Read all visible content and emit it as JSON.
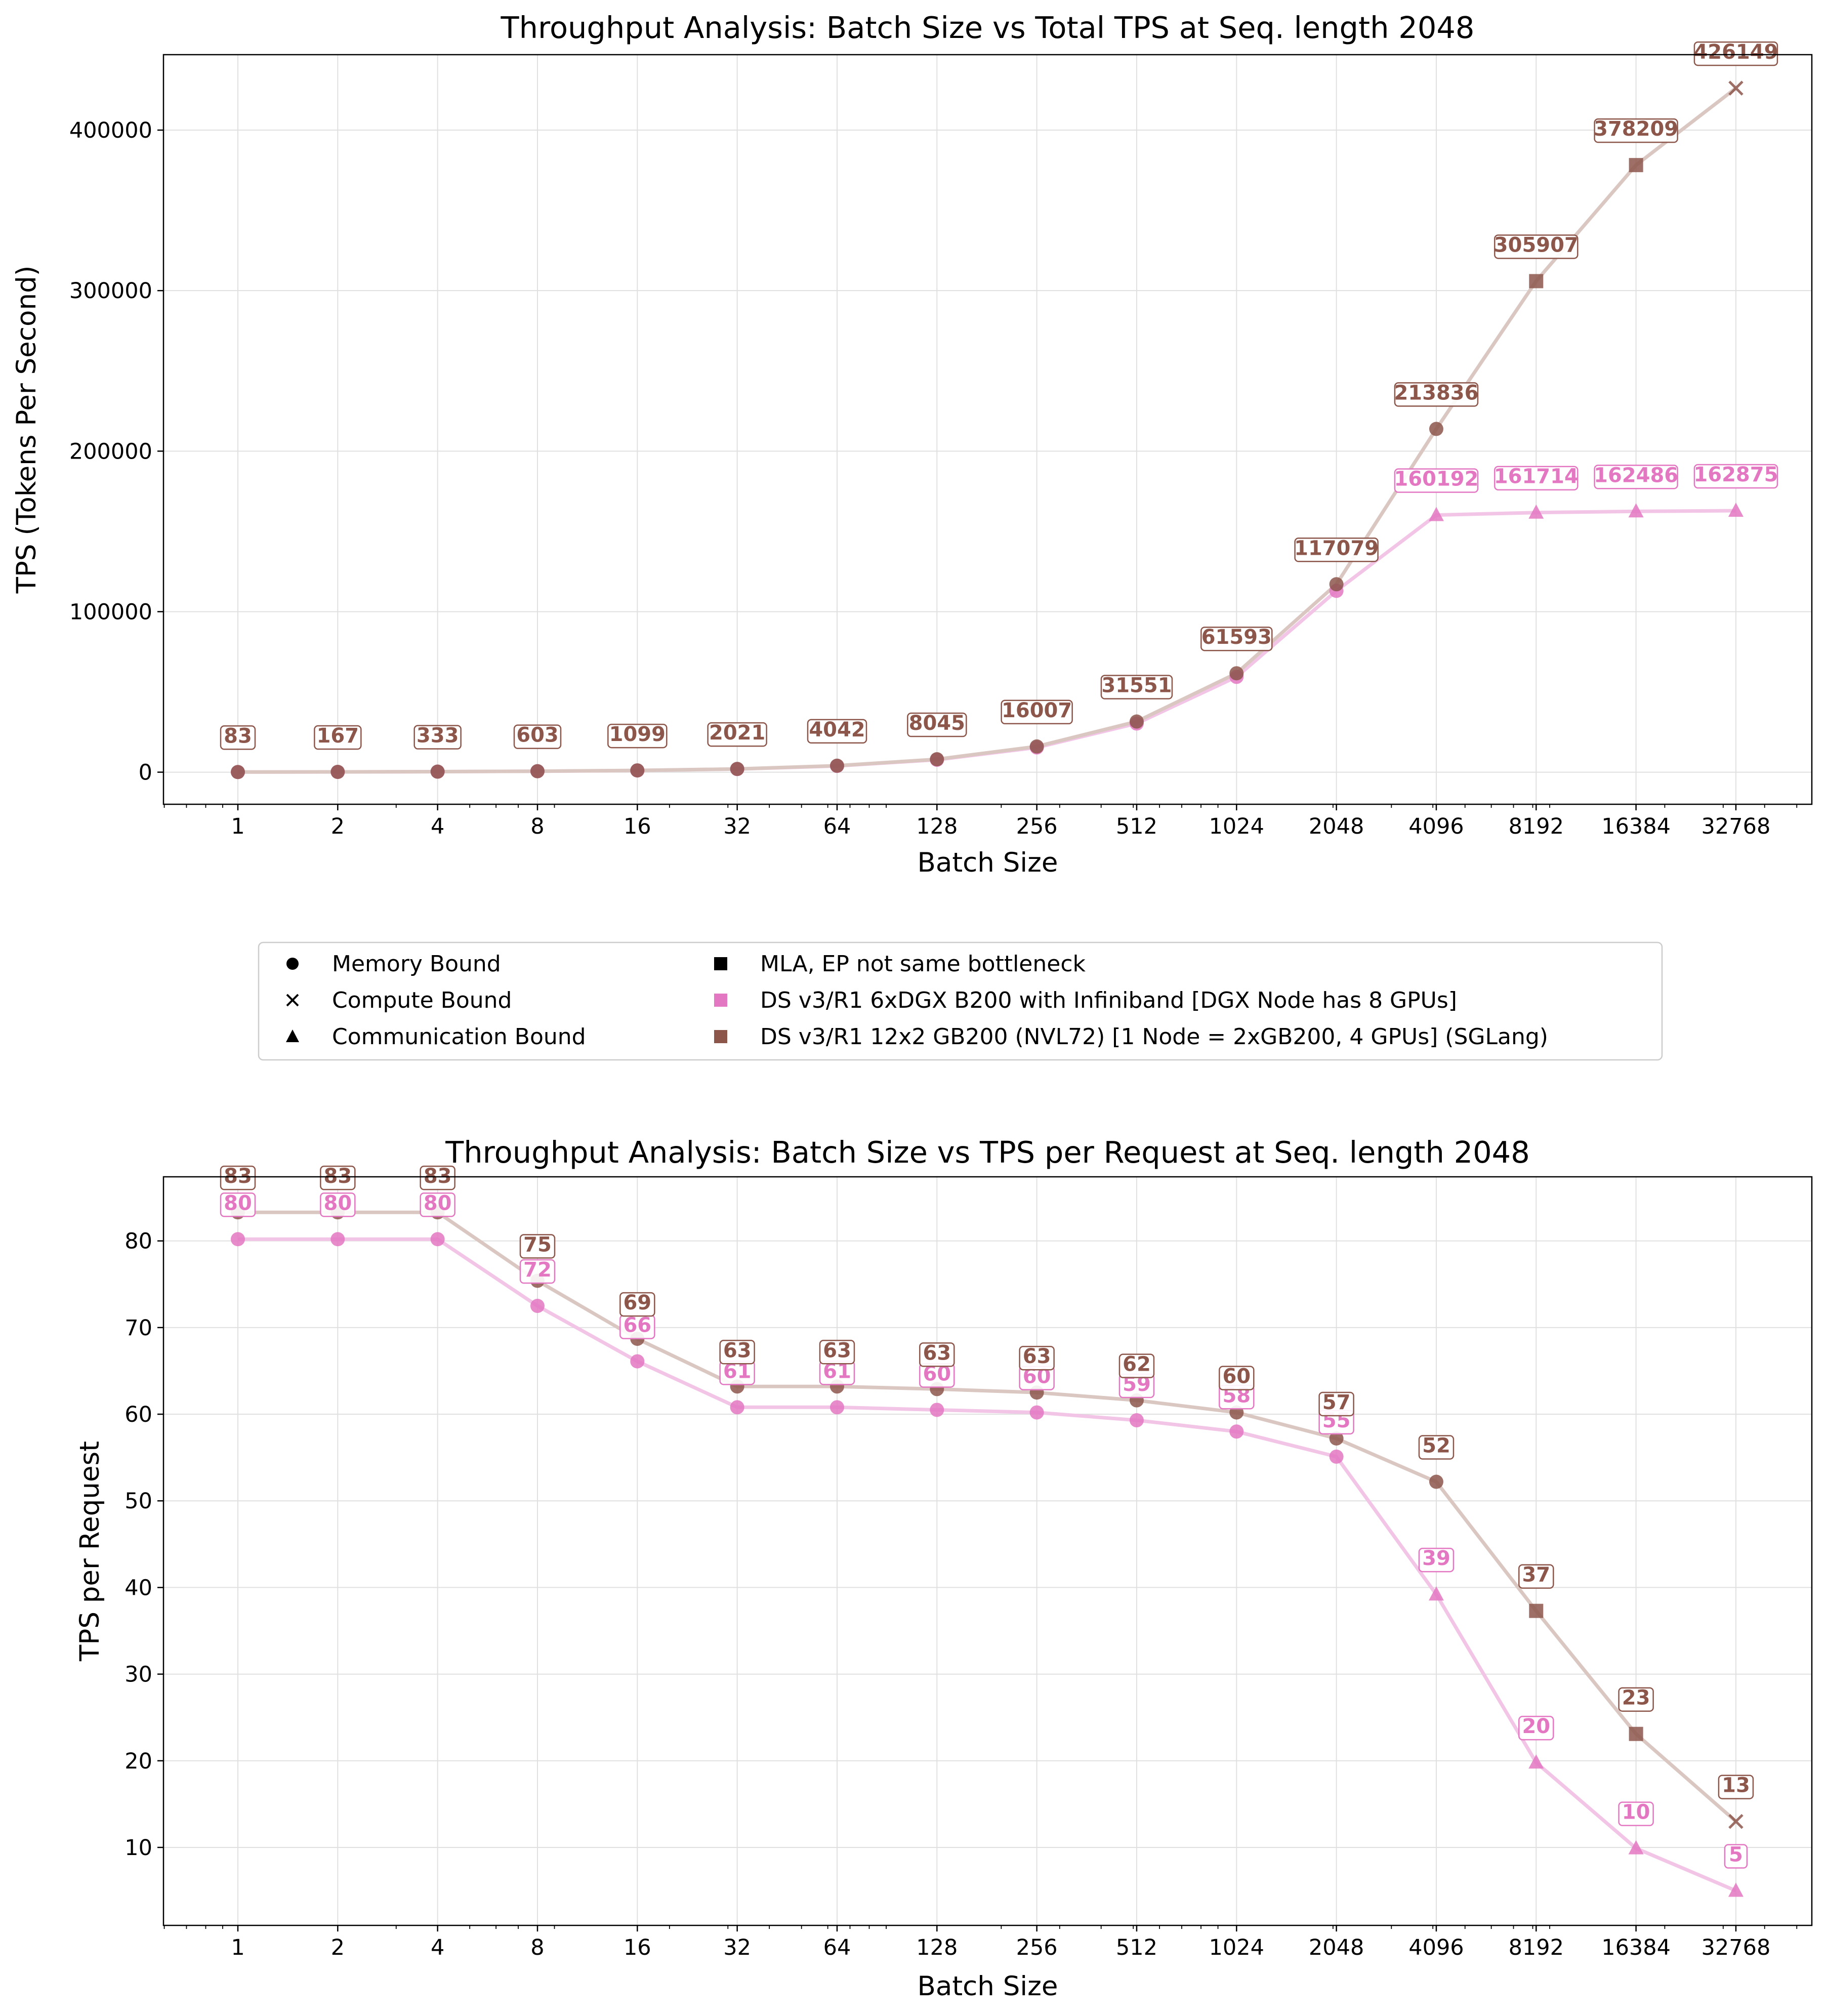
{
  "chart_data": [
    {
      "type": "line",
      "title": "Throughput Analysis: Batch Size vs Total TPS at Seq. length 2048",
      "xlabel": "Batch Size",
      "ylabel": "TPS (Tokens Per Second)",
      "x_scale": "log2",
      "categories": [
        "1",
        "2",
        "4",
        "8",
        "16",
        "32",
        "64",
        "128",
        "256",
        "512",
        "1024",
        "2048",
        "4096",
        "8192",
        "16384",
        "32768"
      ],
      "ylim": [
        -20000,
        447000
      ],
      "yticks": [
        0,
        100000,
        200000,
        300000,
        400000
      ],
      "ytick_labels": [
        "0",
        "100000",
        "200000",
        "300000",
        "400000"
      ],
      "grid": true,
      "series": [
        {
          "name": "DS v3/R1 6xDGX B200 with Infiniband [DGX Node has 8 GPUs]",
          "color": "#e377c2",
          "values": [
            80,
            160,
            320,
            579,
            1056,
            1943,
            3886,
            7734,
            15388,
            30332,
            59376,
            112963,
            160192,
            161714,
            162486,
            162875
          ],
          "labels": [
            "",
            "",
            "",
            "",
            "",
            "",
            "",
            "",
            "",
            "",
            "",
            "",
            "160192",
            "161714",
            "162486",
            "162875"
          ],
          "bounds": [
            "memory",
            "memory",
            "memory",
            "memory",
            "memory",
            "memory",
            "memory",
            "memory",
            "memory",
            "memory",
            "memory",
            "memory",
            "communication",
            "communication",
            "communication",
            "communication"
          ]
        },
        {
          "name": "DS v3/R1 12x2 GB200 (NVL72) [1 Node = 2xGB200, 4 GPUs] (SGLang)",
          "color": "#8c564b",
          "values": [
            83,
            167,
            333,
            603,
            1099,
            2021,
            4042,
            8045,
            16007,
            31551,
            61593,
            117079,
            213836,
            305907,
            378209,
            426149
          ],
          "labels": [
            "83",
            "167",
            "333",
            "603",
            "1099",
            "2021",
            "4042",
            "8045",
            "16007",
            "31551",
            "61593",
            "117079",
            "213836",
            "305907",
            "378209",
            "426149"
          ],
          "bounds": [
            "memory",
            "memory",
            "memory",
            "memory",
            "memory",
            "memory",
            "memory",
            "memory",
            "memory",
            "memory",
            "memory",
            "memory",
            "memory",
            "mla_ep",
            "mla_ep",
            "compute"
          ]
        }
      ]
    },
    {
      "type": "line",
      "title": "Throughput Analysis: Batch Size vs TPS per Request at Seq. length 2048",
      "xlabel": "Batch Size",
      "ylabel": "TPS per Request",
      "x_scale": "log2",
      "categories": [
        "1",
        "2",
        "4",
        "8",
        "16",
        "32",
        "64",
        "128",
        "256",
        "512",
        "1024",
        "2048",
        "4096",
        "8192",
        "16384",
        "32768"
      ],
      "ylim": [
        1.0,
        87.4
      ],
      "yticks": [
        10,
        20,
        30,
        40,
        50,
        60,
        70,
        80
      ],
      "ytick_labels": [
        "10",
        "20",
        "30",
        "40",
        "50",
        "60",
        "70",
        "80"
      ],
      "grid": true,
      "series": [
        {
          "name": "DS v3/R1 6xDGX B200 with Infiniband [DGX Node has 8 GPUs]",
          "color": "#e377c2",
          "values": [
            80.2,
            80.2,
            80.2,
            72.5,
            66.1,
            60.8,
            60.8,
            60.5,
            60.2,
            59.3,
            58.0,
            55.1,
            39.2,
            19.8,
            9.9,
            5.0
          ],
          "labels": [
            "80",
            "80",
            "80",
            "72",
            "66",
            "61",
            "61",
            "60",
            "60",
            "59",
            "58",
            "55",
            "39",
            "20",
            "10",
            "5"
          ],
          "bounds": [
            "memory",
            "memory",
            "memory",
            "memory",
            "memory",
            "memory",
            "memory",
            "memory",
            "memory",
            "memory",
            "memory",
            "memory",
            "communication",
            "communication",
            "communication",
            "communication"
          ]
        },
        {
          "name": "DS v3/R1 12x2 GB200 (NVL72) [1 Node = 2xGB200, 4 GPUs] (SGLang)",
          "color": "#8c564b",
          "values": [
            83.3,
            83.3,
            83.3,
            75.4,
            68.7,
            63.2,
            63.2,
            62.9,
            62.5,
            61.6,
            60.2,
            57.2,
            52.2,
            37.3,
            23.1,
            13.0
          ],
          "labels": [
            "83",
            "83",
            "83",
            "75",
            "69",
            "63",
            "63",
            "63",
            "63",
            "62",
            "60",
            "57",
            "52",
            "37",
            "23",
            "13"
          ],
          "bounds": [
            "memory",
            "memory",
            "memory",
            "memory",
            "memory",
            "memory",
            "memory",
            "memory",
            "memory",
            "memory",
            "memory",
            "memory",
            "memory",
            "mla_ep",
            "mla_ep",
            "compute"
          ]
        }
      ]
    }
  ],
  "legend": {
    "placement": "center, between the two charts",
    "items": [
      {
        "marker": "circle",
        "color": "#000000",
        "label": "Memory Bound"
      },
      {
        "marker": "cross",
        "color": "#000000",
        "label": "Compute Bound"
      },
      {
        "marker": "triangle",
        "color": "#000000",
        "label": "Communication Bound"
      },
      {
        "marker": "square",
        "color": "#000000",
        "label": "MLA, EP not same bottleneck"
      },
      {
        "marker": "square",
        "color": "#e377c2",
        "label": "DS v3/R1 6xDGX B200 with Infiniband [DGX Node has 8 GPUs]"
      },
      {
        "marker": "square",
        "color": "#8c564b",
        "label": "DS v3/R1 12x2 GB200 (NVL72) [1 Node = 2xGB200, 4 GPUs] (SGLang)"
      }
    ]
  }
}
